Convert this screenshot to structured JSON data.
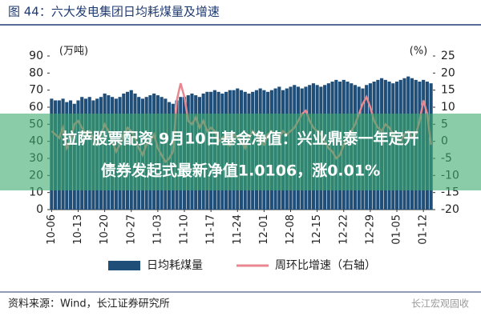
{
  "chart_data": {
    "type": "bar_line",
    "title": "图 44：六大发电集团日均耗煤量及增速",
    "y_unit": "(万吨)",
    "y2_unit": "(%)",
    "categories": [
      "10-06",
      null,
      null,
      null,
      null,
      null,
      null,
      "10-13",
      null,
      null,
      null,
      null,
      null,
      null,
      "10-20",
      null,
      null,
      null,
      null,
      null,
      null,
      "10-27",
      null,
      null,
      null,
      null,
      null,
      null,
      "11-03",
      null,
      null,
      null,
      null,
      null,
      null,
      "11-10",
      null,
      null,
      null,
      null,
      null,
      null,
      "11-17",
      null,
      null,
      null,
      null,
      null,
      null,
      "11-24",
      null,
      null,
      null,
      null,
      null,
      null,
      "12-01",
      null,
      null,
      null,
      null,
      null,
      null,
      "12-08",
      null,
      null,
      null,
      null,
      null,
      null,
      "12-15",
      null,
      null,
      null,
      null,
      null,
      null,
      "12-22",
      null,
      null,
      null,
      null,
      null,
      null,
      "12-29",
      null,
      null,
      null,
      null,
      null,
      null,
      "01-05",
      null,
      null,
      null,
      null,
      null,
      null,
      "01-12",
      null,
      null
    ],
    "series": [
      {
        "name": "日均耗煤量",
        "type": "bar",
        "color": "#1f4e79",
        "values": [
          65,
          64,
          64,
          65,
          63,
          64,
          62,
          64,
          66,
          65,
          66,
          64,
          65,
          66,
          68,
          67,
          66,
          65,
          66,
          68,
          69,
          70,
          68,
          66,
          65,
          66,
          67,
          68,
          67,
          66,
          65,
          63,
          62,
          64,
          66,
          66,
          67,
          68,
          67,
          66,
          68,
          69,
          69,
          70,
          69,
          68,
          69,
          70,
          70,
          71,
          70,
          69,
          68,
          69,
          70,
          71,
          70,
          69,
          70,
          71,
          72,
          70,
          71,
          72,
          73,
          72,
          71,
          72,
          73,
          74,
          73,
          72,
          73,
          74,
          75,
          76,
          75,
          76,
          75,
          74,
          73,
          72,
          71,
          73,
          74,
          75,
          76,
          77,
          76,
          75,
          74,
          75,
          76,
          77,
          78,
          77,
          76,
          75,
          76,
          75,
          74
        ]
      },
      {
        "name": "周环比增速（右轴）",
        "type": "line",
        "axis": "y2",
        "color": "#e8878f",
        "values": [
          3,
          2,
          1,
          4,
          -2,
          0,
          5,
          6,
          4,
          2,
          3,
          1,
          -1,
          2,
          5,
          3,
          0,
          -3,
          -1,
          2,
          4,
          3,
          1,
          -2,
          -4,
          -1,
          0,
          2,
          -2,
          -4,
          -6,
          -5,
          -3,
          12,
          17,
          13,
          6,
          5,
          7,
          4,
          6,
          3,
          4,
          3,
          0,
          1,
          2,
          -1,
          2,
          1,
          0,
          -2,
          1,
          3,
          2,
          0,
          -1,
          2,
          3,
          2,
          1,
          3,
          2,
          3,
          4,
          6,
          8,
          9,
          6,
          4,
          3,
          2,
          0,
          -2,
          -3,
          -5,
          -4,
          -1,
          1,
          3,
          5,
          8,
          11,
          13,
          10,
          6,
          4,
          3,
          5,
          4,
          2,
          1,
          0,
          2,
          3,
          1,
          2,
          6,
          12,
          8,
          -1
        ]
      }
    ],
    "ylim": [
      0,
      90
    ],
    "yticks": [
      0,
      10,
      20,
      30,
      40,
      50,
      60,
      70,
      80,
      90
    ],
    "y2lim": [
      -20,
      25
    ],
    "y2ticks": [
      -20,
      -15,
      -10,
      -5,
      0,
      5,
      10,
      15,
      20,
      25
    ],
    "legend": "bottom"
  },
  "source": "资料来源：Wind，长江证券研究所",
  "watermark": "长江宏观固收",
  "overlay": [
    "拉萨股票配资 9月10日基金净值：兴业鼎泰一年定开",
    "债券发起式最新净值1.0106，涨0.01%"
  ]
}
